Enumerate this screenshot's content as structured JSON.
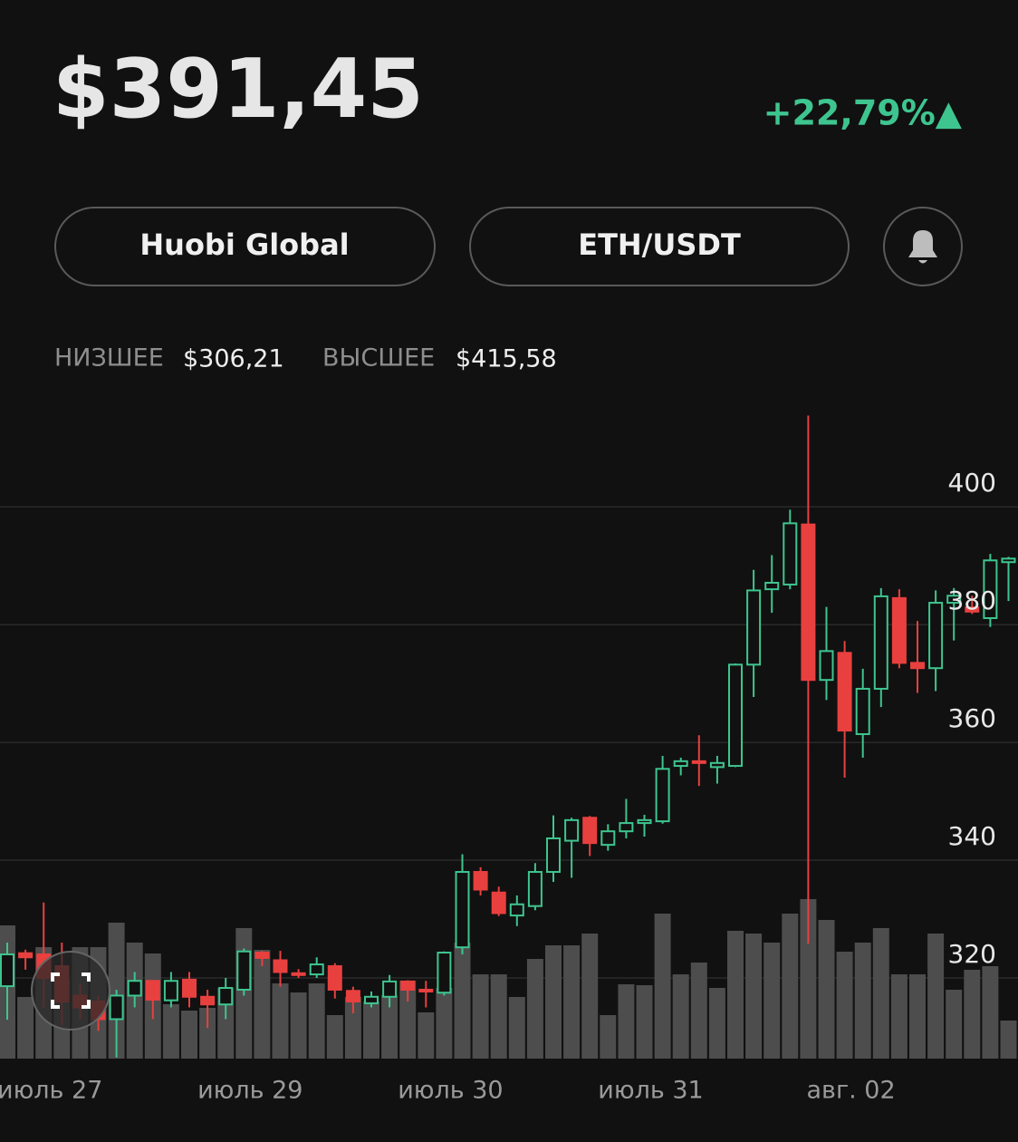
{
  "header": {
    "price": "$391,45",
    "change": "+22,79%▲",
    "exchange": "Huobi Global",
    "pair": "ETH/USDT",
    "low_label": "НИЗШЕЕ",
    "low_value": "$306,21",
    "high_label": "ВЫСШЕЕ",
    "high_value": "$415,58"
  },
  "chart_data": {
    "type": "candlestick",
    "categories": [
      null,
      null,
      "июль 27",
      null,
      null,
      null,
      null,
      null,
      null,
      null,
      null,
      null,
      null,
      "июль 29",
      null,
      null,
      null,
      null,
      null,
      null,
      null,
      null,
      null,
      null,
      "июль 30",
      null,
      null,
      null,
      null,
      null,
      null,
      null,
      null,
      null,
      null,
      "июль 31",
      null,
      null,
      null,
      null,
      null,
      null,
      null,
      null,
      null,
      null,
      "авг. 02",
      null,
      null,
      null,
      null,
      null,
      null,
      null,
      null,
      null
    ],
    "open": [
      318.6,
      324.2,
      324,
      322,
      317,
      316,
      313,
      317,
      319.5,
      316.2,
      319.7,
      316.8,
      315.5,
      318,
      324.3,
      323,
      320.8,
      320.6,
      322,
      317.8,
      315.7,
      316.8,
      319.4,
      318,
      317.5,
      325.2,
      338,
      334.5,
      330.6,
      332.2,
      338,
      343.3,
      347.2,
      342.6,
      344.9,
      346.3,
      346.6,
      356,
      356.8,
      355.8,
      356,
      373.2,
      386,
      386.8,
      397,
      370.6,
      375.2,
      361.4,
      369.1,
      384.5,
      373.5,
      372.6,
      383.7,
      382.9,
      381.1,
      390.6
    ],
    "high": [
      326,
      324.8,
      332.8,
      326,
      319,
      317,
      318,
      321,
      319.6,
      321,
      321,
      318,
      320,
      325,
      324.6,
      324.6,
      321.5,
      323.5,
      322.5,
      318.5,
      317.7,
      320.5,
      319.6,
      319.5,
      324.5,
      341,
      338.8,
      335.5,
      334,
      339.5,
      347.6,
      347.2,
      347.5,
      346.1,
      350.4,
      347.7,
      357.7,
      357.4,
      361.2,
      357.7,
      373.4,
      389.3,
      391.8,
      399.5,
      415.5,
      383,
      377.2,
      372.5,
      386.2,
      386,
      380.6,
      385.8,
      386.2,
      384.9,
      392,
      391.5
    ],
    "low": [
      312.9,
      321.4,
      315,
      312,
      313,
      311,
      306.5,
      315,
      313,
      315,
      315,
      311.5,
      313,
      317,
      322,
      318.5,
      320,
      320,
      316.5,
      314,
      315,
      315,
      316,
      315,
      317,
      324,
      334,
      330.5,
      328.8,
      331.5,
      336.3,
      337,
      340.7,
      341.6,
      343.7,
      344,
      346.2,
      354.4,
      352.6,
      353,
      355.8,
      367.7,
      382,
      386,
      325.8,
      367.2,
      354,
      357.4,
      366,
      372.6,
      368.4,
      368.7,
      377.3,
      381.8,
      379.6,
      384
    ],
    "close": [
      324,
      323.5,
      320,
      316,
      315,
      313,
      317,
      319.5,
      316.3,
      319.5,
      316.8,
      315.5,
      318.3,
      324.5,
      323.4,
      321,
      320.6,
      322.3,
      318,
      316,
      316.8,
      319.4,
      318,
      317.8,
      324.3,
      338,
      335,
      331,
      332.5,
      338,
      343.7,
      346.8,
      342.9,
      344.9,
      346.3,
      346.8,
      355.5,
      356.8,
      356.5,
      356.5,
      373.2,
      385.8,
      387.1,
      397.2,
      370.6,
      375.5,
      362,
      369.1,
      384.8,
      373.5,
      372.6,
      383.7,
      384.9,
      382.2,
      390.9,
      391.2
    ],
    "volume": [
      147,
      68,
      123,
      88,
      123,
      123,
      150,
      128,
      116,
      60,
      53,
      56,
      78,
      144,
      120,
      83,
      73,
      83,
      48,
      68,
      63,
      70,
      86,
      51,
      78,
      128,
      93,
      93,
      68,
      110,
      125,
      125,
      138,
      48,
      82,
      81,
      160,
      93,
      106,
      78,
      141,
      138,
      128,
      160,
      176,
      153,
      118,
      128,
      144,
      93,
      93,
      138,
      76,
      98,
      102,
      42
    ],
    "up_color": "#3ec58f",
    "down_color": "#e8403f",
    "volume_color": "#4d4d4d",
    "ylim": [
      306.3,
      416.8
    ],
    "yticks": [
      320,
      340,
      360,
      380,
      400
    ],
    "y2lim": [
      0,
      200
    ],
    "grid": true
  }
}
